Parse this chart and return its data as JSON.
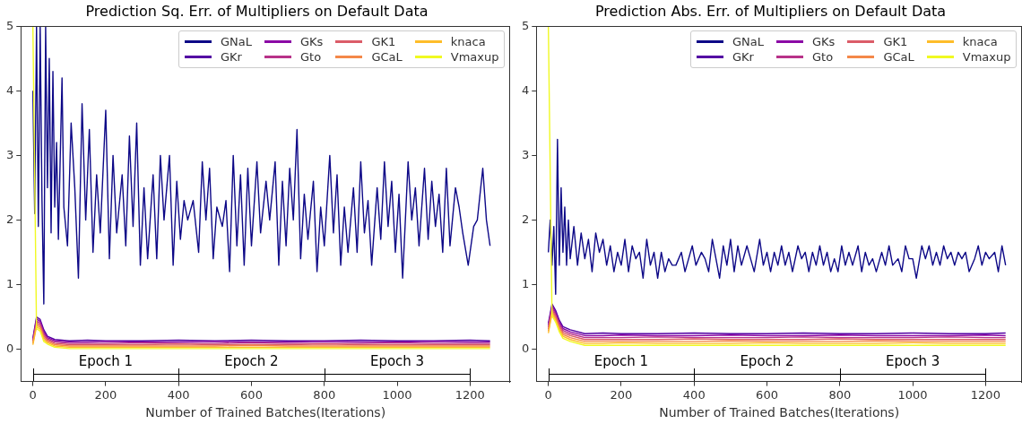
{
  "chart_data": [
    {
      "type": "line",
      "title": "Prediction Sq. Err. of Multipliers on Default Data",
      "xlabel": "Number of Trained Batches(Iterations)",
      "x": [
        0,
        10,
        20,
        30,
        40,
        60,
        100,
        150,
        200,
        300,
        400,
        500,
        600,
        700,
        800,
        900,
        1000,
        1100,
        1200,
        1255
      ],
      "series": [
        {
          "name": "GNaL",
          "color": "#0d0887",
          "x": [
            0,
            5,
            10,
            15,
            20,
            25,
            30,
            35,
            40,
            45,
            50,
            55,
            60,
            65,
            70,
            80,
            85,
            95,
            105,
            115,
            125,
            135,
            145,
            155,
            165,
            175,
            185,
            200,
            210,
            220,
            230,
            245,
            255,
            265,
            275,
            285,
            295,
            305,
            315,
            330,
            340,
            350,
            360,
            375,
            385,
            395,
            405,
            415,
            425,
            440,
            455,
            465,
            475,
            485,
            495,
            505,
            520,
            530,
            540,
            550,
            560,
            570,
            580,
            590,
            600,
            615,
            625,
            640,
            650,
            665,
            675,
            685,
            695,
            705,
            715,
            725,
            735,
            745,
            755,
            770,
            780,
            790,
            800,
            815,
            825,
            835,
            845,
            855,
            865,
            880,
            890,
            900,
            910,
            920,
            930,
            945,
            955,
            965,
            975,
            985,
            995,
            1005,
            1015,
            1030,
            1040,
            1050,
            1060,
            1075,
            1085,
            1095,
            1105,
            1115,
            1125,
            1135,
            1145,
            1160,
            1170,
            1180,
            1195,
            1210,
            1220,
            1235,
            1245,
            1255
          ],
          "values": [
            4.0,
            2.1,
            5,
            1.9,
            5,
            2.3,
            0.7,
            5,
            2.5,
            4.5,
            1.8,
            4.3,
            2.2,
            3.2,
            1.7,
            4.2,
            2.2,
            1.6,
            3.5,
            2.5,
            1.1,
            3.8,
            2.0,
            3.4,
            1.5,
            2.7,
            1.8,
            3.7,
            1.4,
            3.0,
            1.8,
            2.7,
            1.6,
            3.3,
            1.9,
            3.5,
            1.3,
            2.5,
            1.4,
            2.7,
            1.4,
            3.0,
            2.0,
            3.0,
            1.3,
            2.6,
            1.7,
            2.3,
            2.0,
            2.3,
            1.5,
            2.9,
            2.0,
            2.8,
            1.4,
            2.2,
            1.9,
            2.3,
            1.2,
            3.0,
            1.6,
            2.7,
            1.3,
            2.8,
            1.6,
            2.9,
            1.8,
            2.6,
            2.0,
            2.9,
            1.3,
            2.6,
            1.6,
            2.8,
            2.0,
            3.4,
            1.4,
            2.4,
            1.7,
            2.6,
            1.2,
            2.2,
            1.6,
            3.0,
            1.8,
            2.7,
            1.3,
            2.2,
            1.5,
            2.5,
            1.5,
            2.9,
            1.8,
            2.3,
            1.3,
            2.5,
            1.7,
            2.9,
            1.9,
            2.6,
            1.5,
            2.4,
            1.1,
            2.9,
            2.0,
            2.5,
            1.6,
            2.8,
            1.7,
            2.6,
            1.9,
            2.4,
            1.5,
            2.8,
            1.6,
            2.5,
            2.2,
            1.8,
            1.3,
            1.9,
            2.0,
            2.8,
            2.0,
            1.6
          ]
        },
        {
          "name": "GKr",
          "color": "#5302a3",
          "values": [
            0.17,
            0.5,
            0.46,
            0.3,
            0.2,
            0.15,
            0.13,
            0.14,
            0.13,
            0.13,
            0.14,
            0.13,
            0.14,
            0.13,
            0.13,
            0.14,
            0.13,
            0.13,
            0.14,
            0.13
          ]
        },
        {
          "name": "GKs",
          "color": "#8b0aa5",
          "values": [
            0.15,
            0.47,
            0.43,
            0.27,
            0.18,
            0.13,
            0.11,
            0.11,
            0.12,
            0.11,
            0.11,
            0.12,
            0.11,
            0.11,
            0.12,
            0.11,
            0.11,
            0.12,
            0.11,
            0.11
          ]
        },
        {
          "name": "Gto",
          "color": "#b83289",
          "values": [
            0.13,
            0.44,
            0.4,
            0.24,
            0.16,
            0.11,
            0.09,
            0.09,
            0.09,
            0.1,
            0.09,
            0.09,
            0.1,
            0.09,
            0.09,
            0.09,
            0.1,
            0.09,
            0.09,
            0.09
          ]
        },
        {
          "name": "GK1",
          "color": "#db5c68",
          "values": [
            0.11,
            0.41,
            0.37,
            0.21,
            0.14,
            0.09,
            0.07,
            0.07,
            0.07,
            0.07,
            0.08,
            0.07,
            0.07,
            0.07,
            0.08,
            0.07,
            0.07,
            0.07,
            0.07,
            0.07
          ]
        },
        {
          "name": "GCaL",
          "color": "#f48849",
          "values": [
            0.09,
            0.38,
            0.34,
            0.18,
            0.12,
            0.07,
            0.05,
            0.05,
            0.05,
            0.05,
            0.05,
            0.05,
            0.06,
            0.05,
            0.05,
            0.05,
            0.05,
            0.05,
            0.05,
            0.05
          ]
        },
        {
          "name": "knaca",
          "color": "#febd2a",
          "values": [
            0.07,
            0.35,
            0.31,
            0.15,
            0.1,
            0.05,
            0.03,
            0.03,
            0.03,
            0.03,
            0.03,
            0.03,
            0.03,
            0.03,
            0.03,
            0.03,
            0.03,
            0.03,
            0.03,
            0.03
          ]
        },
        {
          "name": "Vmaxup",
          "color": "#f0f921",
          "values": [
            5,
            0.32,
            0.28,
            0.12,
            0.08,
            0.03,
            0.01,
            0.01,
            0.01,
            0.01,
            0.01,
            0.01,
            0.01,
            0.01,
            0.01,
            0.01,
            0.01,
            0.01,
            0.01,
            0.01
          ]
        }
      ],
      "annotations": [
        "Epoch 1",
        "Epoch 2",
        "Epoch 3"
      ],
      "xlim": [
        -33,
        1310
      ],
      "ylim": [
        -0.5,
        5
      ],
      "xticks": [
        0,
        200,
        400,
        600,
        800,
        1000,
        1200
      ],
      "yticks": [
        0,
        1,
        2,
        3,
        4,
        5
      ],
      "grid": false,
      "legend": "top right"
    },
    {
      "type": "line",
      "title": "Prediction Abs. Err. of Multipliers on Default Data",
      "xlabel": "Number of Trained Batches(Iterations)",
      "x": [
        0,
        10,
        20,
        30,
        40,
        60,
        100,
        150,
        200,
        300,
        400,
        500,
        600,
        700,
        800,
        900,
        1000,
        1100,
        1200,
        1255
      ],
      "series": [
        {
          "name": "GNaL",
          "color": "#0d0887",
          "x": [
            0,
            5,
            10,
            15,
            20,
            25,
            30,
            35,
            40,
            45,
            50,
            55,
            60,
            70,
            80,
            90,
            100,
            110,
            120,
            130,
            140,
            150,
            160,
            170,
            180,
            190,
            200,
            210,
            220,
            230,
            240,
            250,
            260,
            270,
            280,
            290,
            300,
            310,
            320,
            330,
            340,
            350,
            365,
            375,
            385,
            395,
            405,
            420,
            430,
            440,
            450,
            460,
            470,
            480,
            490,
            500,
            510,
            520,
            530,
            545,
            555,
            565,
            580,
            590,
            600,
            610,
            620,
            630,
            640,
            650,
            660,
            670,
            685,
            695,
            705,
            715,
            725,
            735,
            745,
            755,
            765,
            775,
            785,
            795,
            805,
            815,
            825,
            835,
            850,
            860,
            870,
            880,
            890,
            900,
            915,
            925,
            935,
            945,
            960,
            970,
            980,
            990,
            1000,
            1010,
            1025,
            1035,
            1045,
            1055,
            1065,
            1075,
            1085,
            1095,
            1105,
            1115,
            1125,
            1135,
            1145,
            1155,
            1170,
            1180,
            1190,
            1200,
            1210,
            1225,
            1235,
            1245,
            1255
          ],
          "values": [
            1.5,
            2.0,
            1.3,
            1.9,
            0.85,
            3.25,
            1.3,
            2.5,
            1.5,
            2.2,
            1.3,
            2.0,
            1.4,
            1.9,
            1.3,
            1.8,
            1.4,
            1.7,
            1.2,
            1.8,
            1.5,
            1.7,
            1.3,
            1.6,
            1.2,
            1.5,
            1.3,
            1.7,
            1.2,
            1.6,
            1.4,
            1.5,
            1.1,
            1.7,
            1.3,
            1.5,
            1.1,
            1.5,
            1.2,
            1.4,
            1.3,
            1.3,
            1.5,
            1.2,
            1.4,
            1.6,
            1.3,
            1.5,
            1.4,
            1.2,
            1.7,
            1.4,
            1.1,
            1.6,
            1.3,
            1.7,
            1.2,
            1.6,
            1.3,
            1.6,
            1.4,
            1.2,
            1.7,
            1.3,
            1.5,
            1.2,
            1.5,
            1.3,
            1.6,
            1.3,
            1.5,
            1.2,
            1.6,
            1.4,
            1.5,
            1.2,
            1.5,
            1.3,
            1.6,
            1.3,
            1.5,
            1.2,
            1.4,
            1.2,
            1.6,
            1.3,
            1.5,
            1.3,
            1.6,
            1.2,
            1.5,
            1.3,
            1.4,
            1.2,
            1.5,
            1.3,
            1.6,
            1.3,
            1.4,
            1.2,
            1.6,
            1.4,
            1.4,
            1.1,
            1.6,
            1.4,
            1.6,
            1.3,
            1.5,
            1.3,
            1.6,
            1.4,
            1.5,
            1.3,
            1.5,
            1.4,
            1.5,
            1.2,
            1.4,
            1.6,
            1.3,
            1.5,
            1.4,
            1.5,
            1.2,
            1.6,
            1.3
          ]
        },
        {
          "name": "GKr",
          "color": "#5302a3",
          "values": [
            0.4,
            0.7,
            0.6,
            0.45,
            0.35,
            0.3,
            0.24,
            0.25,
            0.24,
            0.24,
            0.25,
            0.24,
            0.24,
            0.25,
            0.24,
            0.24,
            0.25,
            0.24,
            0.24,
            0.25
          ]
        },
        {
          "name": "GKs",
          "color": "#8b0aa5",
          "values": [
            0.37,
            0.67,
            0.57,
            0.42,
            0.32,
            0.27,
            0.21,
            0.21,
            0.22,
            0.21,
            0.21,
            0.22,
            0.21,
            0.21,
            0.22,
            0.21,
            0.21,
            0.21,
            0.22,
            0.21
          ]
        },
        {
          "name": "Gto",
          "color": "#b83289",
          "values": [
            0.34,
            0.64,
            0.54,
            0.39,
            0.29,
            0.24,
            0.18,
            0.18,
            0.18,
            0.19,
            0.18,
            0.18,
            0.18,
            0.19,
            0.18,
            0.18,
            0.18,
            0.19,
            0.18,
            0.18
          ]
        },
        {
          "name": "GK1",
          "color": "#db5c68",
          "values": [
            0.31,
            0.61,
            0.51,
            0.36,
            0.26,
            0.21,
            0.15,
            0.15,
            0.15,
            0.15,
            0.16,
            0.15,
            0.15,
            0.15,
            0.16,
            0.15,
            0.15,
            0.15,
            0.15,
            0.15
          ]
        },
        {
          "name": "GCaL",
          "color": "#f48849",
          "values": [
            0.28,
            0.58,
            0.48,
            0.33,
            0.23,
            0.18,
            0.12,
            0.12,
            0.12,
            0.12,
            0.12,
            0.13,
            0.12,
            0.12,
            0.12,
            0.13,
            0.12,
            0.12,
            0.12,
            0.12
          ]
        },
        {
          "name": "knaca",
          "color": "#febd2a",
          "values": [
            0.25,
            0.55,
            0.45,
            0.3,
            0.2,
            0.15,
            0.09,
            0.09,
            0.1,
            0.09,
            0.09,
            0.09,
            0.1,
            0.09,
            0.09,
            0.09,
            0.1,
            0.09,
            0.09,
            0.09
          ]
        },
        {
          "name": "Vmaxup",
          "color": "#f0f921",
          "values": [
            5,
            0.52,
            0.42,
            0.27,
            0.17,
            0.12,
            0.06,
            0.06,
            0.06,
            0.06,
            0.06,
            0.06,
            0.06,
            0.06,
            0.06,
            0.06,
            0.06,
            0.06,
            0.06,
            0.06
          ]
        }
      ],
      "annotations": [
        "Epoch 1",
        "Epoch 2",
        "Epoch 3"
      ],
      "xlim": [
        -33,
        1300
      ],
      "ylim": [
        -0.5,
        5
      ],
      "xticks": [
        0,
        200,
        400,
        600,
        800,
        1000,
        1200
      ],
      "yticks": [
        0,
        1,
        2,
        3,
        4,
        5
      ],
      "grid": false,
      "legend": "top right"
    }
  ]
}
